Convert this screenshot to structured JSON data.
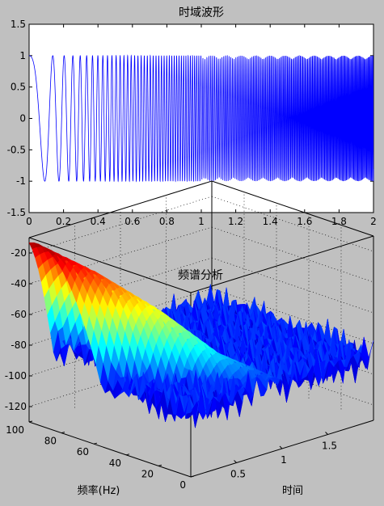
{
  "chart_data": [
    {
      "type": "line",
      "title": "时域波形",
      "xlabel": "",
      "ylabel": "",
      "xlim": [
        0,
        2
      ],
      "ylim": [
        -1.5,
        1.5
      ],
      "xticks": [
        "0",
        "0.2",
        "0.4",
        "0.6",
        "0.8",
        "1",
        "1.2",
        "1.4",
        "1.6",
        "1.8",
        "2"
      ],
      "yticks": [
        "1.5",
        "1",
        "0.5",
        "0",
        "-0.5",
        "-1",
        "-1.5"
      ],
      "series": [
        {
          "color": "#0000ff",
          "shape": "chirp",
          "amplitude": 1,
          "x_start": 0,
          "x_end": 2,
          "start_value": 1,
          "min_value": -1,
          "max_value": 1
        }
      ]
    },
    {
      "type": "surface",
      "title": "频谱分析",
      "xlabel": "时间",
      "ylabel": "频率(Hz)",
      "zlabel": "",
      "xlim": [
        0,
        2
      ],
      "ylim": [
        0,
        100
      ],
      "zlim": [
        -130,
        -10
      ],
      "xticks": [
        "0.5",
        "1",
        "1.5"
      ],
      "yticks": [
        "100",
        "80",
        "60",
        "40",
        "20",
        "0"
      ],
      "zticks": [
        "-20",
        "-40",
        "-60",
        "-80",
        "-100",
        "-120"
      ],
      "peak": {
        "time": 0.05,
        "freq": 95,
        "value": -10
      },
      "ridge": [
        {
          "time": 0.0,
          "freq": 95,
          "value": -12
        },
        {
          "time": 0.2,
          "freq": 72,
          "value": -25
        },
        {
          "time": 0.45,
          "freq": 48,
          "value": -45
        },
        {
          "time": 0.7,
          "freq": 25,
          "value": -70
        },
        {
          "time": 1.0,
          "freq": 5,
          "value": -85
        }
      ],
      "background_range": [
        -110,
        -70
      ],
      "colormap": "jet"
    }
  ]
}
